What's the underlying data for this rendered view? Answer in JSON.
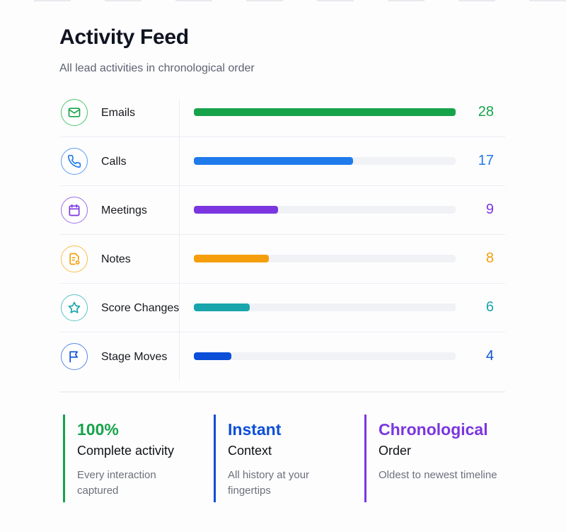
{
  "header": {
    "title": "Activity Feed",
    "subtitle": "All lead activities in chronological order"
  },
  "chart_data": {
    "type": "bar",
    "orientation": "horizontal",
    "title": "Activity Feed",
    "subtitle": "All lead activities in chronological order",
    "categories": [
      "Emails",
      "Calls",
      "Meetings",
      "Notes",
      "Score Changes",
      "Stage Moves"
    ],
    "values": [
      28,
      17,
      9,
      8,
      6,
      4
    ],
    "max": 28,
    "colors": [
      "#16a34a",
      "#1f7aec",
      "#7b36e0",
      "#f59e0b",
      "#18a6ac",
      "#0b4fd8"
    ],
    "xlabel": "",
    "ylabel": "",
    "grid": false,
    "legend": "none"
  },
  "rows": [
    {
      "label": "Emails",
      "value": "28",
      "icon": "mail-icon",
      "color": "#16a34a",
      "ring": "#4cc36a",
      "pct": 100
    },
    {
      "label": "Calls",
      "value": "17",
      "icon": "phone-icon",
      "color": "#1f7aec",
      "ring": "#5a9bf0",
      "pct": 64
    },
    {
      "label": "Meetings",
      "value": "9",
      "icon": "calendar-icon",
      "color": "#7b36e0",
      "ring": "#a06ce8",
      "pct": 34.6
    },
    {
      "label": "Notes",
      "value": "8",
      "icon": "note-icon",
      "color": "#f59e0b",
      "ring": "#f8bd4f",
      "pct": 30.3
    },
    {
      "label": "Score Changes",
      "value": "6",
      "icon": "star-icon",
      "color": "#18a6ac",
      "ring": "#5cc3c6",
      "pct": 22.5
    },
    {
      "label": "Stage Moves",
      "value": "4",
      "icon": "flag-icon",
      "color": "#0b4fd8",
      "ring": "#5a86e6",
      "pct": 14.6
    }
  ],
  "stats": [
    {
      "big": "100%",
      "mid": "Complete activity",
      "small": "Every interaction captured",
      "color": "#16a34a"
    },
    {
      "big": "Instant",
      "mid": "Context",
      "small": "All history at your fingertips",
      "color": "#0b4fd8"
    },
    {
      "big": "Chronological",
      "mid": "Order",
      "small": "Oldest to newest timeline",
      "color": "#7b36e0"
    }
  ]
}
